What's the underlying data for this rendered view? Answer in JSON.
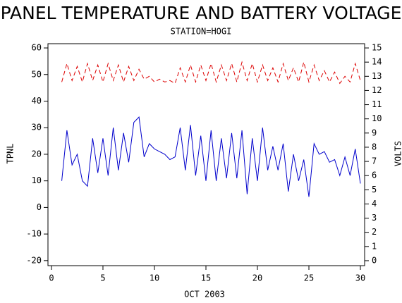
{
  "chart_data": {
    "type": "line",
    "title": "PANEL TEMPERATURE AND BATTERY VOLTAGE",
    "subtitle": "STATION=HOGI",
    "x_label": "OCT 2003",
    "y_label": "TPNL",
    "y2_label": "VOLTS",
    "x": [
      1,
      1.5,
      2,
      2.5,
      3,
      3.5,
      4,
      4.5,
      5,
      5.5,
      6,
      6.5,
      7,
      7.5,
      8,
      8.5,
      9,
      9.5,
      10,
      10.5,
      11,
      11.5,
      12,
      12.5,
      13,
      13.5,
      14,
      14.5,
      15,
      15.5,
      16,
      16.5,
      17,
      17.5,
      18,
      18.5,
      19,
      19.5,
      20,
      20.5,
      21,
      21.5,
      22,
      22.5,
      23,
      23.5,
      24,
      24.5,
      25,
      25.5,
      26,
      26.5,
      27,
      27.5,
      28,
      28.5,
      29,
      29.5,
      30
    ],
    "series": [
      {
        "color": "#0000cc",
        "values": [
          10,
          29,
          16,
          20,
          10,
          8,
          26,
          13,
          26,
          12,
          30,
          14,
          28,
          17,
          32,
          34,
          19,
          24,
          22,
          21,
          20,
          18,
          19,
          30,
          14,
          31,
          12,
          27,
          10,
          29,
          10,
          26,
          11,
          28,
          11,
          29,
          5,
          26,
          10,
          30,
          14,
          23,
          14,
          24,
          6,
          20,
          10,
          18,
          4,
          24,
          20,
          21,
          17,
          18,
          12,
          19,
          12,
          22,
          9
        ]
      },
      {
        "color": "#dd0000",
        "axis": "y2",
        "dashed": true,
        "values": [
          12.6,
          13.9,
          12.7,
          13.7,
          12.6,
          13.9,
          12.7,
          13.8,
          12.6,
          13.9,
          12.7,
          13.8,
          12.6,
          13.7,
          12.7,
          13.5,
          12.8,
          13.0,
          12.6,
          12.8,
          12.6,
          12.7,
          12.5,
          13.6,
          12.6,
          13.8,
          12.6,
          13.8,
          12.7,
          13.9,
          12.6,
          13.8,
          12.7,
          13.9,
          12.6,
          14.0,
          12.7,
          13.9,
          12.6,
          13.8,
          12.7,
          13.6,
          12.6,
          13.9,
          12.7,
          13.6,
          12.6,
          14.0,
          12.6,
          13.8,
          12.7,
          13.4,
          12.6,
          13.3,
          12.5,
          13.0,
          12.6,
          13.9,
          12.7
        ]
      }
    ],
    "xlim": [
      -0.34,
      30.41
    ],
    "xticks": [
      0,
      5,
      10,
      15,
      20,
      25,
      30
    ],
    "ylim": [
      -21.9,
      61.6
    ],
    "yticks": [
      -20,
      -10,
      0,
      10,
      20,
      30,
      40,
      50,
      60
    ],
    "y2lim": [
      -0.35,
      15.3
    ],
    "y2ticks": [
      0,
      1,
      2,
      3,
      4,
      5,
      6,
      7,
      8,
      9,
      10,
      11,
      12,
      13,
      14,
      15
    ]
  }
}
